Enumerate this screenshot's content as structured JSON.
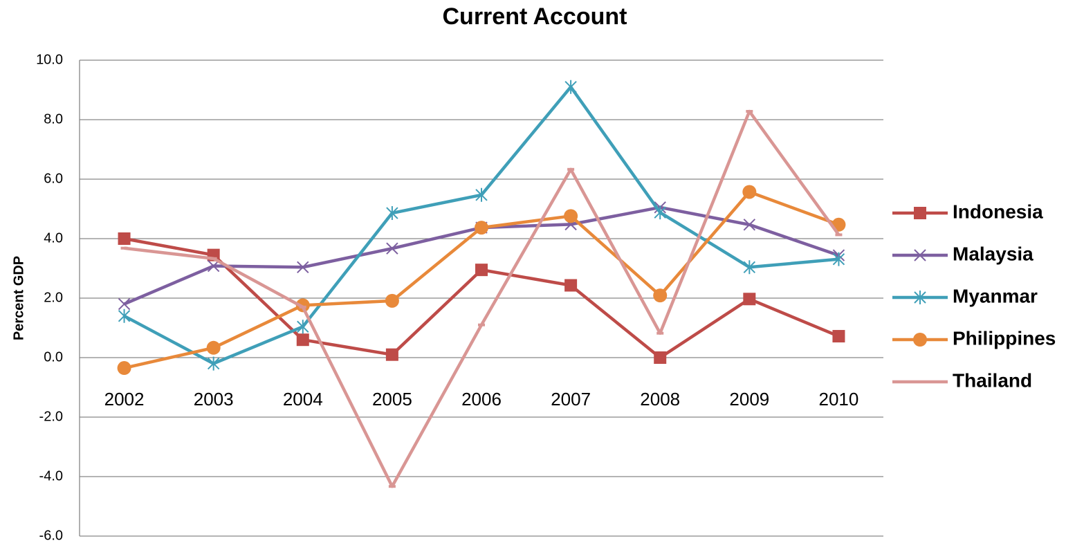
{
  "chart_data": {
    "type": "line",
    "title": "Current Account",
    "y_label": "Percent GDP",
    "categories": [
      "2002",
      "2003",
      "2004",
      "2005",
      "2006",
      "2007",
      "2008",
      "2009",
      "2010"
    ],
    "series": [
      {
        "name": "Indonesia",
        "color": "#be4b48",
        "marker": "square",
        "values": [
          4.0,
          3.45,
          0.6,
          0.1,
          2.95,
          2.43,
          0.0,
          1.97,
          0.72
        ]
      },
      {
        "name": "Malaysia",
        "color": "#7d5fa0",
        "marker": "x",
        "values": [
          1.8,
          3.08,
          3.04,
          3.67,
          4.37,
          4.48,
          5.05,
          4.47,
          3.44
        ]
      },
      {
        "name": "Myanmar",
        "color": "#3f9fb8",
        "marker": "star",
        "values": [
          1.4,
          -0.2,
          1.04,
          4.86,
          5.47,
          9.1,
          4.88,
          3.04,
          3.31
        ]
      },
      {
        "name": "Philippines",
        "color": "#e8893a",
        "marker": "circle",
        "values": [
          -0.35,
          0.33,
          1.76,
          1.91,
          4.37,
          4.76,
          2.09,
          5.57,
          4.47
        ]
      },
      {
        "name": "Thailand",
        "color": "#d99694",
        "marker": "dash",
        "values": [
          3.68,
          3.33,
          1.7,
          -4.33,
          1.1,
          6.33,
          0.82,
          8.28,
          4.13
        ]
      }
    ],
    "ylim": [
      -6,
      10
    ],
    "yticks": [
      {
        "value": -6,
        "label": "-6.0"
      },
      {
        "value": -4,
        "label": "-4.0"
      },
      {
        "value": -2,
        "label": "-2.0"
      },
      {
        "value": 0,
        "label": "0.0"
      },
      {
        "value": 2,
        "label": "2.0"
      },
      {
        "value": 4,
        "label": "4.0"
      },
      {
        "value": 6,
        "label": "6.0"
      },
      {
        "value": 8,
        "label": "8.0"
      },
      {
        "value": 10,
        "label": "10.0"
      }
    ],
    "grid": true,
    "legend": "right"
  }
}
